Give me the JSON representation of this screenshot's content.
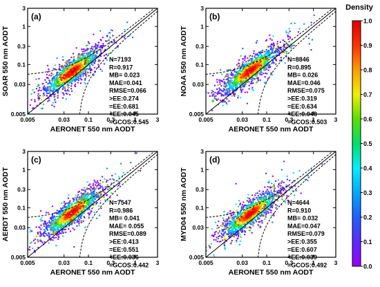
{
  "colorbar": {
    "title": "Density",
    "ticks": [
      "0.0",
      "0.1",
      "0.2",
      "0.3",
      "0.4",
      "0.5",
      "0.6",
      "0.7",
      "0.8",
      "0.9",
      "1.0"
    ],
    "range": [
      0,
      1
    ],
    "colors": [
      "#9b00ff",
      "#5a2bff",
      "#1f60ff",
      "#00a8ff",
      "#00f0ff",
      "#00e06a",
      "#5ae000",
      "#f0f000",
      "#ff9c00",
      "#ff3000",
      "#e00000"
    ]
  },
  "chart_data": [
    {
      "type": "scatter",
      "panel_label": "(a)",
      "xlabel": "AERONET 550 nm AODT",
      "ylabel": "SOAR 550 nm AODT",
      "scale": "log",
      "xlim": [
        0.005,
        3
      ],
      "ylim": [
        0.005,
        3
      ],
      "x_ticks": [
        "0.005",
        "0.03",
        "0.1",
        "0.3",
        "1",
        "3"
      ],
      "y_ticks": [
        "0.005",
        "0.03",
        "0.1",
        "0.3",
        "1",
        "3"
      ],
      "stats": [
        "N=7193",
        "R=0.917",
        "MB= 0.023",
        "MAE=0.041",
        "RMSE=0.066",
        ">EE:0.274",
        "=EE:0.681",
        "<EE:0.045",
        "=GCOS:0.545"
      ],
      "density_center": [
        0.045,
        0.065
      ],
      "one_to_one_line": true,
      "ee_envelope_lines": true
    },
    {
      "type": "scatter",
      "panel_label": "(b)",
      "xlabel": "AERONET 550 nm AODT",
      "ylabel": "NOAA 550 nm AODT",
      "scale": "log",
      "xlim": [
        0.005,
        3
      ],
      "ylim": [
        0.005,
        3
      ],
      "x_ticks": [
        "0.005",
        "0.03",
        "0.1",
        "0.3",
        "1",
        "3"
      ],
      "y_ticks": [
        "0.005",
        "0.03",
        "0.1",
        "0.3",
        "1",
        "3"
      ],
      "stats": [
        "N=8846",
        "R=0.895",
        "MB= 0.026",
        "MAE=0.046",
        "RMSE=0.075",
        ">EE:0.319",
        "=EE:0.634",
        "<EE:0.048",
        "=GCOS:0.503"
      ],
      "density_center": [
        0.045,
        0.07
      ],
      "one_to_one_line": true,
      "ee_envelope_lines": true
    },
    {
      "type": "scatter",
      "panel_label": "(c)",
      "xlabel": "AERONET 550 nm AODT",
      "ylabel": "AERDT 550 nm AODT",
      "scale": "log",
      "xlim": [
        0.005,
        3
      ],
      "ylim": [
        0.005,
        3
      ],
      "x_ticks": [
        "0.005",
        "0.03",
        "0.1",
        "0.3",
        "1",
        "3"
      ],
      "y_ticks": [
        "0.005",
        "0.03",
        "0.1",
        "0.3",
        "1",
        "3"
      ],
      "stats": [
        "N=7547",
        "R=0.986",
        "MB= 0.041",
        "MAE= 0.055",
        "RMSE=0.089",
        ">EE:0.413",
        "=EE:0.551",
        "<EE:0.036",
        "=GCOS:0.442"
      ],
      "density_center": [
        0.045,
        0.075
      ],
      "one_to_one_line": true,
      "ee_envelope_lines": true
    },
    {
      "type": "scatter",
      "panel_label": "(d)",
      "xlabel": "AERONET 550 nm AODT",
      "ylabel": "MYD04 550 nm AODT",
      "scale": "log",
      "xlim": [
        0.005,
        3
      ],
      "ylim": [
        0.005,
        3
      ],
      "x_ticks": [
        "0.005",
        "0.03",
        "0.1",
        "0.3",
        "1",
        "3"
      ],
      "y_ticks": [
        "0.005",
        "0.03",
        "0.1",
        "0.3",
        "1",
        "3"
      ],
      "stats": [
        "N=4644",
        "R=0.910",
        "MB= 0.032",
        "MAE=0.047",
        "RMSE=0.079",
        ">EE:0.355",
        "=EE:0.607",
        "<EE:0.039",
        "=GCOS:0.492"
      ],
      "density_center": [
        0.045,
        0.07
      ],
      "one_to_one_line": true,
      "ee_envelope_lines": true
    }
  ]
}
